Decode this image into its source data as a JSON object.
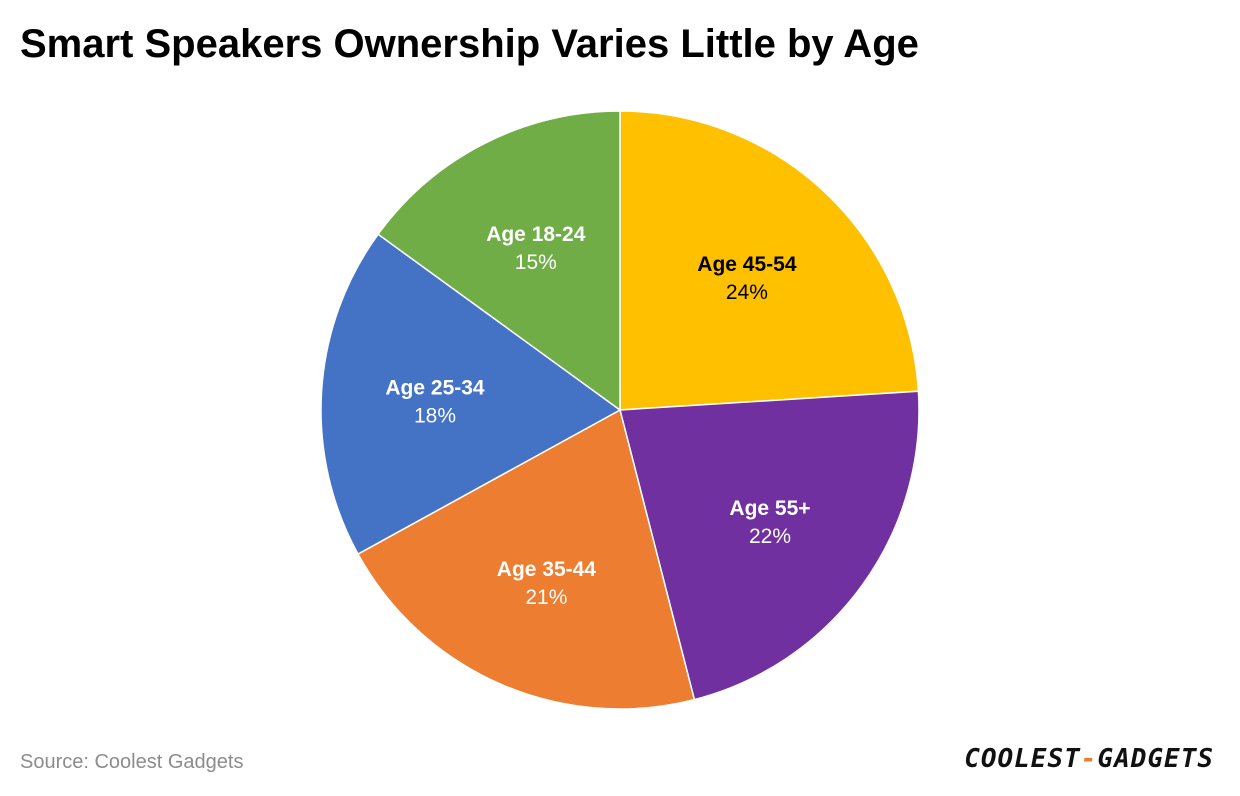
{
  "title": "Smart Speakers Ownership Varies Little by Age",
  "source": "Source: Coolest Gadgets",
  "logo": {
    "left": "COOLEST",
    "dash": "-",
    "right": "GADGETS"
  },
  "chart_data": {
    "type": "pie",
    "title": "Smart Speakers Ownership Varies Little by Age",
    "unit": "%",
    "start_angle_deg": 0,
    "direction": "clockwise",
    "slices": [
      {
        "label": "Age 45-54",
        "value": 24,
        "display": "24%",
        "color": "#FFC000",
        "text_color": "#000000"
      },
      {
        "label": "Age 55+",
        "value": 22,
        "display": "22%",
        "color": "#7030A0",
        "text_color": "#FFFFFF"
      },
      {
        "label": "Age 35-44",
        "value": 21,
        "display": "21%",
        "color": "#ED7D31",
        "text_color": "#FFFFFF"
      },
      {
        "label": "Age 25-34",
        "value": 18,
        "display": "18%",
        "color": "#4472C4",
        "text_color": "#FFFFFF"
      },
      {
        "label": "Age 18-24",
        "value": 15,
        "display": "15%",
        "color": "#70AD47",
        "text_color": "#FFFFFF"
      }
    ]
  }
}
